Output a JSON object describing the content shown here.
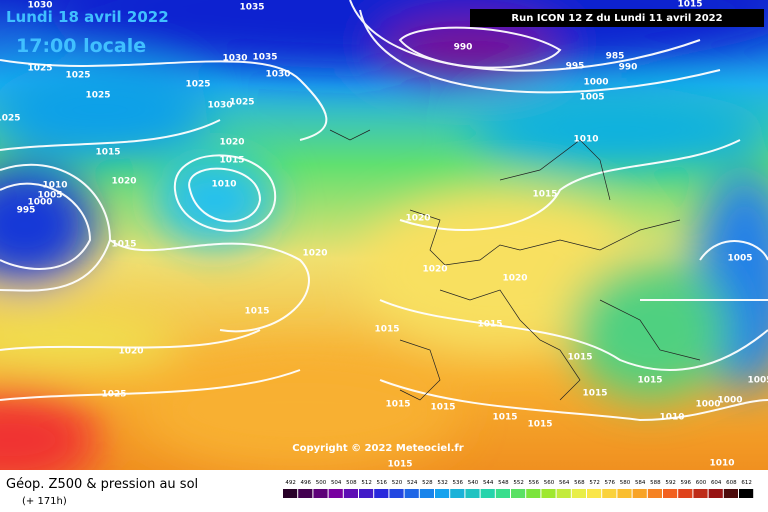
{
  "header": {
    "date": "Lundi 18 avril 2022",
    "time": "17:00 locale",
    "run": "Run ICON 12 Z du Lundi 11 avril 2022"
  },
  "copyright": "Copyright © 2022 Meteociel.fr",
  "isobar_labels": [
    "1030",
    "1035",
    "1025",
    "1025",
    "1025",
    "1025",
    "1015",
    "1020",
    "1010",
    "1005",
    "1000",
    "995",
    "1030",
    "1035",
    "1030",
    "1025",
    "1030",
    "1025",
    "1020",
    "1015",
    "1010",
    "1015",
    "1020",
    "1015",
    "1020",
    "1025",
    "990",
    "995",
    "985",
    "990",
    "1000",
    "1005",
    "1010",
    "1015",
    "1020",
    "1020",
    "1020",
    "1015",
    "1015",
    "1015",
    "1015",
    "1005",
    "1015",
    "1015",
    "1015",
    "1015",
    "1015",
    "1010",
    "1000",
    "1000",
    "1005",
    "1010",
    "1015",
    "1015"
  ],
  "footer": {
    "title": "Géop. Z500 & pression au sol",
    "lead": "(+ 171h)"
  },
  "scale": {
    "labels": [
      "492",
      "496",
      "500",
      "504",
      "508",
      "512",
      "516",
      "520",
      "524",
      "528",
      "532",
      "536",
      "540",
      "544",
      "548",
      "552",
      "556",
      "560",
      "564",
      "568",
      "572",
      "576",
      "580",
      "584",
      "588",
      "592",
      "596",
      "600",
      "604",
      "608",
      "612"
    ]
  }
}
